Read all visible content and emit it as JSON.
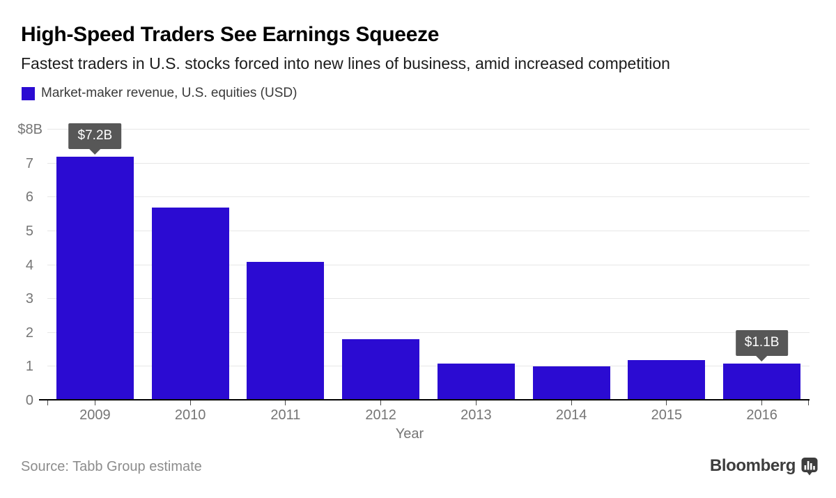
{
  "header": {
    "title": "High-Speed Traders See Earnings Squeeze",
    "subtitle": "Fastest traders in U.S. stocks forced into new lines of business, amid increased competition"
  },
  "legend": {
    "label": "Market-maker revenue, U.S. equities (USD)"
  },
  "chart_data": {
    "type": "bar",
    "title": "High-Speed Traders See Earnings Squeeze",
    "subtitle": "Fastest traders in U.S. stocks forced into new lines of business, amid increased competition",
    "series_name": "Market-maker revenue, U.S. equities (USD)",
    "categories": [
      "2009",
      "2010",
      "2011",
      "2012",
      "2013",
      "2014",
      "2015",
      "2016"
    ],
    "values": [
      7.2,
      5.7,
      4.1,
      1.8,
      1.1,
      1.0,
      1.2,
      1.1
    ],
    "xlabel": "Year",
    "ylabel": "",
    "y_axis_top_label": "$8B",
    "y_ticks": [
      0,
      1,
      2,
      3,
      4,
      5,
      6,
      7,
      8
    ],
    "ylim": [
      0,
      8
    ],
    "grid": true,
    "legend_position": "top-left",
    "annotations": [
      {
        "category": "2009",
        "label": "$7.2B"
      },
      {
        "category": "2016",
        "label": "$1.1B"
      }
    ]
  },
  "footer": {
    "source": "Source: Tabb Group estimate",
    "brand": "Bloomberg"
  },
  "colors": {
    "bar": "#2b0bd2",
    "tooltip_bg": "#575757",
    "tooltip_text": "#ffffff",
    "grid": "#e7e7e7",
    "axis": "#000000",
    "tick": "#4a4a4a",
    "tick_label": "#757575",
    "subtitle_text": "#1c1c1c",
    "legend_text": "#3a3a3a",
    "source_text": "#8c8c8c",
    "brand_text": "#3d3d3d"
  }
}
